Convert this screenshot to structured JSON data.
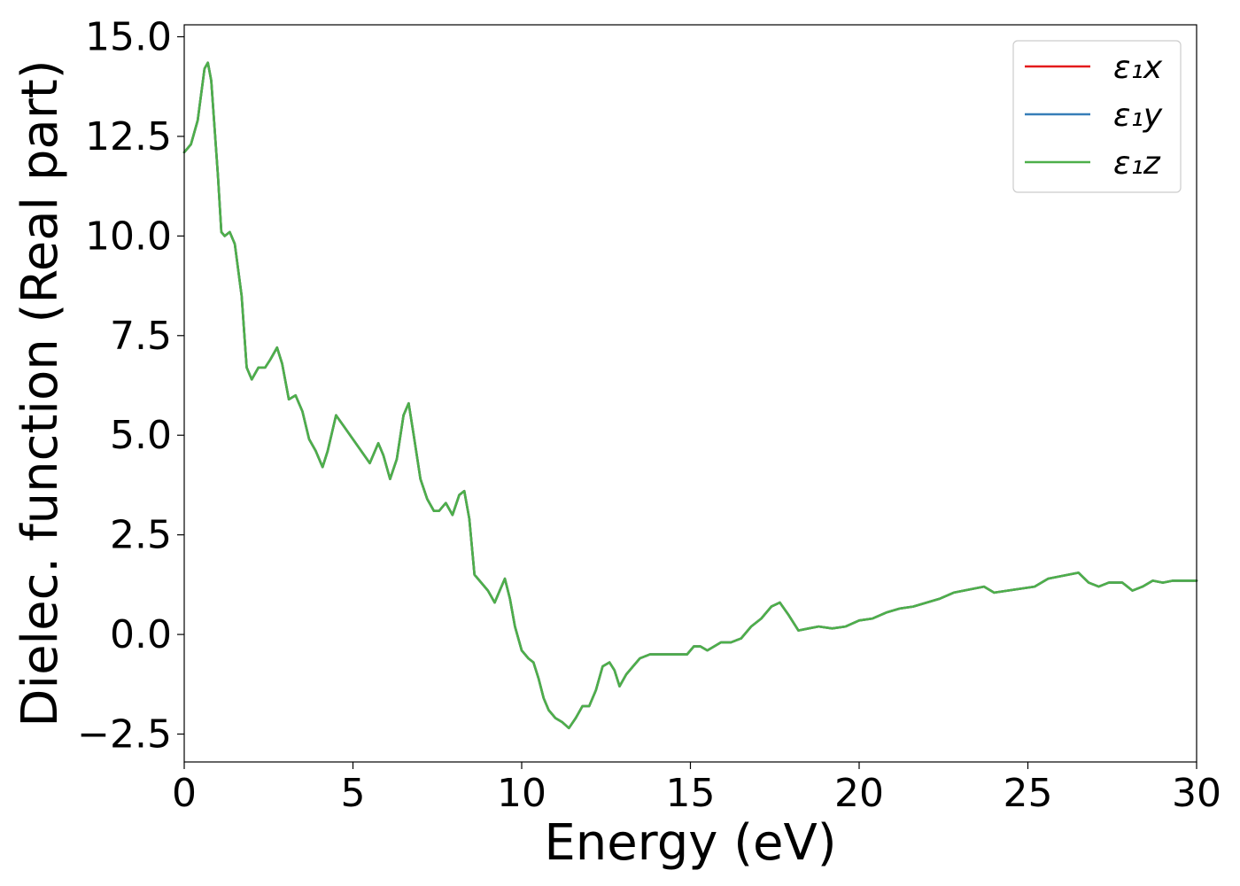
{
  "chart_data": {
    "type": "line",
    "xlabel": "Energy (eV)",
    "ylabel": "Dielec. function (Real part)",
    "xlim": [
      0,
      30
    ],
    "ylim": [
      -3.2,
      15.3
    ],
    "xticks": [
      0,
      5,
      10,
      15,
      20,
      25,
      30
    ],
    "xtick_labels": [
      "0",
      "5",
      "10",
      "15",
      "20",
      "25",
      "30"
    ],
    "yticks": [
      -2.5,
      0.0,
      2.5,
      5.0,
      7.5,
      10.0,
      12.5,
      15.0
    ],
    "ytick_labels": [
      "−2.5",
      "0.0",
      "2.5",
      "5.0",
      "7.5",
      "10.0",
      "12.5",
      "15.0"
    ],
    "grid": false,
    "legend_position": "top-right",
    "series": [
      {
        "name": "ε₁x",
        "color": "#e41a1c"
      },
      {
        "name": "ε₁y",
        "color": "#377eb8"
      },
      {
        "name": "ε₁z",
        "color": "#4daf4a"
      }
    ],
    "x": [
      0,
      0.2,
      0.4,
      0.6,
      0.7,
      0.8,
      1.0,
      1.1,
      1.2,
      1.35,
      1.5,
      1.7,
      1.85,
      2.0,
      2.2,
      2.4,
      2.55,
      2.75,
      2.9,
      3.1,
      3.3,
      3.5,
      3.7,
      3.9,
      4.1,
      4.25,
      4.5,
      4.75,
      5.0,
      5.25,
      5.5,
      5.75,
      5.9,
      6.1,
      6.3,
      6.5,
      6.65,
      6.8,
      7.0,
      7.2,
      7.4,
      7.55,
      7.75,
      7.95,
      8.15,
      8.3,
      8.45,
      8.6,
      8.8,
      9.0,
      9.2,
      9.35,
      9.5,
      9.65,
      9.8,
      10.0,
      10.2,
      10.35,
      10.5,
      10.65,
      10.8,
      11.0,
      11.2,
      11.4,
      11.6,
      11.8,
      12.0,
      12.2,
      12.4,
      12.6,
      12.75,
      12.9,
      13.1,
      13.3,
      13.5,
      13.8,
      14.1,
      14.5,
      14.9,
      15.1,
      15.3,
      15.5,
      15.7,
      15.9,
      16.2,
      16.5,
      16.8,
      17.1,
      17.4,
      17.65,
      17.9,
      18.2,
      18.5,
      18.8,
      19.2,
      19.6,
      20.0,
      20.4,
      20.8,
      21.2,
      21.6,
      22.0,
      22.4,
      22.8,
      23.1,
      23.4,
      23.7,
      24.0,
      24.4,
      24.8,
      25.2,
      25.6,
      25.9,
      26.2,
      26.5,
      26.8,
      27.1,
      27.4,
      27.8,
      28.1,
      28.4,
      28.7,
      29.0,
      29.3,
      29.6,
      30.0
    ],
    "y": [
      12.1,
      12.3,
      12.9,
      14.2,
      14.35,
      13.9,
      11.5,
      10.1,
      10.0,
      10.1,
      9.8,
      8.5,
      6.7,
      6.4,
      6.7,
      6.7,
      6.9,
      7.2,
      6.8,
      5.9,
      6.0,
      5.6,
      4.9,
      4.6,
      4.2,
      4.6,
      5.5,
      5.2,
      4.9,
      4.6,
      4.3,
      4.8,
      4.5,
      3.9,
      4.4,
      5.5,
      5.8,
      5.0,
      3.9,
      3.4,
      3.1,
      3.1,
      3.3,
      3.0,
      3.5,
      3.6,
      2.9,
      1.5,
      1.3,
      1.1,
      0.8,
      1.1,
      1.4,
      0.9,
      0.2,
      -0.4,
      -0.6,
      -0.7,
      -1.1,
      -1.6,
      -1.9,
      -2.1,
      -2.2,
      -2.35,
      -2.1,
      -1.8,
      -1.8,
      -1.4,
      -0.8,
      -0.7,
      -0.9,
      -1.3,
      -1.0,
      -0.8,
      -0.6,
      -0.5,
      -0.5,
      -0.5,
      -0.5,
      -0.3,
      -0.3,
      -0.4,
      -0.3,
      -0.2,
      -0.2,
      -0.1,
      0.2,
      0.4,
      0.7,
      0.8,
      0.5,
      0.1,
      0.15,
      0.2,
      0.15,
      0.2,
      0.35,
      0.4,
      0.55,
      0.65,
      0.7,
      0.8,
      0.9,
      1.05,
      1.1,
      1.15,
      1.2,
      1.05,
      1.1,
      1.15,
      1.2,
      1.4,
      1.45,
      1.5,
      1.55,
      1.3,
      1.2,
      1.3,
      1.3,
      1.1,
      1.2,
      1.35,
      1.3,
      1.35,
      1.35,
      1.35
    ]
  }
}
